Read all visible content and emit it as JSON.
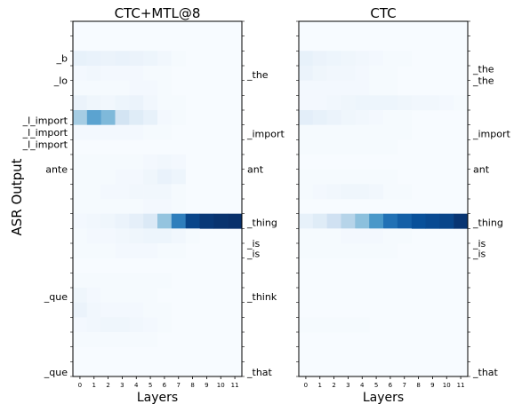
{
  "figure": {
    "ylabel": "ASR Output",
    "xlabel": "Layers"
  },
  "chart_data": [
    {
      "type": "heatmap",
      "title": "CTC+MTL@8",
      "xlabel": "Layers",
      "x_ticks": [
        "0",
        "1",
        "2",
        "3",
        "4",
        "5",
        "6",
        "7",
        "8",
        "9",
        "10",
        "11"
      ],
      "rows": 24,
      "left_labels": [
        {
          "row": 2.5,
          "text": "_b"
        },
        {
          "row": 4,
          "text": "_lo"
        },
        {
          "row": 6.7,
          "text": "_l_import"
        },
        {
          "row": 7.5,
          "text": "_l_import"
        },
        {
          "row": 8.3,
          "text": "_l_import"
        },
        {
          "row": 10,
          "text": "ante"
        },
        {
          "row": 14,
          "text": ""
        },
        {
          "row": 18.6,
          "text": "_que"
        },
        {
          "row": 23.7,
          "text": "_que"
        }
      ],
      "right_labels": [
        {
          "row": 3.6,
          "text": "_the"
        },
        {
          "row": 7.6,
          "text": "_import"
        },
        {
          "row": 10,
          "text": "ant"
        },
        {
          "row": 13.6,
          "text": "_thing"
        },
        {
          "row": 15,
          "text": "_is"
        },
        {
          "row": 15.7,
          "text": "_is"
        },
        {
          "row": 18.6,
          "text": "_think"
        },
        {
          "row": 23.7,
          "text": "_that"
        }
      ],
      "colormap": "Blues",
      "vrange": [
        0,
        1
      ],
      "cells": [
        {
          "row": 2,
          "values": [
            0.08,
            0.07,
            0.06,
            0.07,
            0.06,
            0.05,
            0.03,
            0.01,
            0,
            0,
            0,
            0
          ]
        },
        {
          "row": 3,
          "values": [
            0.02,
            0.03,
            0.02,
            0.02,
            0.02,
            0.01,
            0.01,
            0,
            0,
            0,
            0,
            0
          ]
        },
        {
          "row": 4,
          "values": [
            0.01,
            0.01,
            0.01,
            0.01,
            0.02,
            0.02,
            0.01,
            0,
            0,
            0,
            0,
            0
          ]
        },
        {
          "row": 5,
          "values": [
            0.06,
            0.04,
            0.03,
            0.05,
            0.06,
            0.03,
            0.01,
            0.01,
            0,
            0,
            0,
            0
          ]
        },
        {
          "row": 6,
          "values": [
            0.35,
            0.55,
            0.45,
            0.18,
            0.12,
            0.08,
            0.02,
            0.01,
            0,
            0,
            0,
            0
          ]
        },
        {
          "row": 7,
          "values": [
            0.02,
            0.02,
            0.02,
            0.02,
            0.02,
            0.01,
            0.01,
            0,
            0,
            0,
            0,
            0
          ]
        },
        {
          "row": 9,
          "values": [
            0.01,
            0.01,
            0.01,
            0.01,
            0.01,
            0.02,
            0.03,
            0.02,
            0,
            0,
            0,
            0
          ]
        },
        {
          "row": 10,
          "values": [
            0.01,
            0.01,
            0.01,
            0.02,
            0.02,
            0.04,
            0.07,
            0.05,
            0,
            0,
            0,
            0
          ]
        },
        {
          "row": 11,
          "values": [
            0.01,
            0.01,
            0.02,
            0.02,
            0.03,
            0.03,
            0.03,
            0.01,
            0,
            0,
            0,
            0
          ]
        },
        {
          "row": 12,
          "values": [
            0.01,
            0.01,
            0.01,
            0.01,
            0.01,
            0.02,
            0.02,
            0.01,
            0,
            0,
            0,
            0
          ]
        },
        {
          "row": 13,
          "values": [
            0.02,
            0.03,
            0.04,
            0.06,
            0.09,
            0.14,
            0.4,
            0.7,
            0.92,
            0.97,
            0.99,
            1.0
          ]
        },
        {
          "row": 14,
          "values": [
            0.01,
            0.02,
            0.02,
            0.03,
            0.04,
            0.05,
            0.05,
            0.03,
            0.01,
            0,
            0,
            0
          ]
        },
        {
          "row": 15,
          "values": [
            0.01,
            0.01,
            0.01,
            0.02,
            0.02,
            0.02,
            0.01,
            0.01,
            0,
            0,
            0,
            0
          ]
        },
        {
          "row": 17,
          "values": [
            0.01,
            0.01,
            0.01,
            0.01,
            0.01,
            0.01,
            0.01,
            0,
            0,
            0,
            0,
            0
          ]
        },
        {
          "row": 18,
          "values": [
            0.04,
            0.02,
            0.01,
            0.01,
            0.01,
            0.01,
            0,
            0,
            0,
            0,
            0,
            0
          ]
        },
        {
          "row": 19,
          "values": [
            0.06,
            0.03,
            0.02,
            0.02,
            0.02,
            0.01,
            0.01,
            0,
            0,
            0,
            0,
            0
          ]
        },
        {
          "row": 20,
          "values": [
            0.02,
            0.03,
            0.04,
            0.04,
            0.03,
            0.02,
            0.01,
            0,
            0,
            0,
            0,
            0
          ]
        },
        {
          "row": 21,
          "values": [
            0.01,
            0.01,
            0.01,
            0.01,
            0.01,
            0.01,
            0,
            0,
            0,
            0,
            0,
            0
          ]
        }
      ]
    },
    {
      "type": "heatmap",
      "title": "CTC",
      "xlabel": "Layers",
      "x_ticks": [
        "0",
        "1",
        "2",
        "3",
        "4",
        "5",
        "6",
        "7",
        "8",
        "9",
        "10",
        "11"
      ],
      "rows": 24,
      "left_labels": [],
      "right_labels": [
        {
          "row": 3.2,
          "text": "_the"
        },
        {
          "row": 4,
          "text": "_the"
        },
        {
          "row": 7.6,
          "text": "_import"
        },
        {
          "row": 10,
          "text": "ant"
        },
        {
          "row": 13.6,
          "text": "_thing"
        },
        {
          "row": 15,
          "text": "_is"
        },
        {
          "row": 15.7,
          "text": "_is"
        },
        {
          "row": 23.7,
          "text": "_that"
        }
      ],
      "colormap": "Blues",
      "vrange": [
        0,
        1
      ],
      "cells": [
        {
          "row": 2,
          "values": [
            0.08,
            0.06,
            0.05,
            0.04,
            0.03,
            0.02,
            0.01,
            0.01,
            0,
            0,
            0,
            0
          ]
        },
        {
          "row": 3,
          "values": [
            0.06,
            0.04,
            0.03,
            0.03,
            0.02,
            0.01,
            0.01,
            0,
            0,
            0,
            0,
            0
          ]
        },
        {
          "row": 4,
          "values": [
            0.02,
            0.02,
            0.02,
            0.02,
            0.02,
            0.01,
            0.01,
            0,
            0,
            0,
            0,
            0
          ]
        },
        {
          "row": 5,
          "values": [
            0.02,
            0.02,
            0.03,
            0.04,
            0.05,
            0.05,
            0.05,
            0.04,
            0.03,
            0.03,
            0.02,
            0.01
          ]
        },
        {
          "row": 6,
          "values": [
            0.1,
            0.08,
            0.06,
            0.04,
            0.03,
            0.02,
            0.01,
            0.01,
            0,
            0,
            0,
            0
          ]
        },
        {
          "row": 7,
          "values": [
            0.01,
            0.01,
            0.01,
            0.01,
            0.01,
            0.01,
            0.01,
            0.01,
            0,
            0,
            0,
            0
          ]
        },
        {
          "row": 8,
          "values": [
            0.01,
            0.01,
            0.01,
            0.01,
            0.01,
            0.01,
            0.01,
            0,
            0,
            0,
            0,
            0
          ]
        },
        {
          "row": 10,
          "values": [
            0.01,
            0.01,
            0.01,
            0.01,
            0.01,
            0.01,
            0.01,
            0,
            0,
            0,
            0,
            0
          ]
        },
        {
          "row": 11,
          "values": [
            0.01,
            0.02,
            0.03,
            0.04,
            0.04,
            0.03,
            0.01,
            0.01,
            0,
            0,
            0,
            0
          ]
        },
        {
          "row": 13,
          "values": [
            0.08,
            0.12,
            0.2,
            0.3,
            0.42,
            0.6,
            0.75,
            0.82,
            0.88,
            0.9,
            0.92,
            0.98
          ]
        },
        {
          "row": 14,
          "values": [
            0.01,
            0.01,
            0.01,
            0.02,
            0.02,
            0.02,
            0.01,
            0.01,
            0,
            0,
            0,
            0
          ]
        },
        {
          "row": 15,
          "values": [
            0.01,
            0.01,
            0.01,
            0.01,
            0.01,
            0.01,
            0.01,
            0,
            0,
            0,
            0,
            0
          ]
        },
        {
          "row": 20,
          "values": [
            0.01,
            0.01,
            0.01,
            0.01,
            0.01,
            0,
            0,
            0,
            0,
            0,
            0,
            0
          ]
        }
      ]
    }
  ]
}
